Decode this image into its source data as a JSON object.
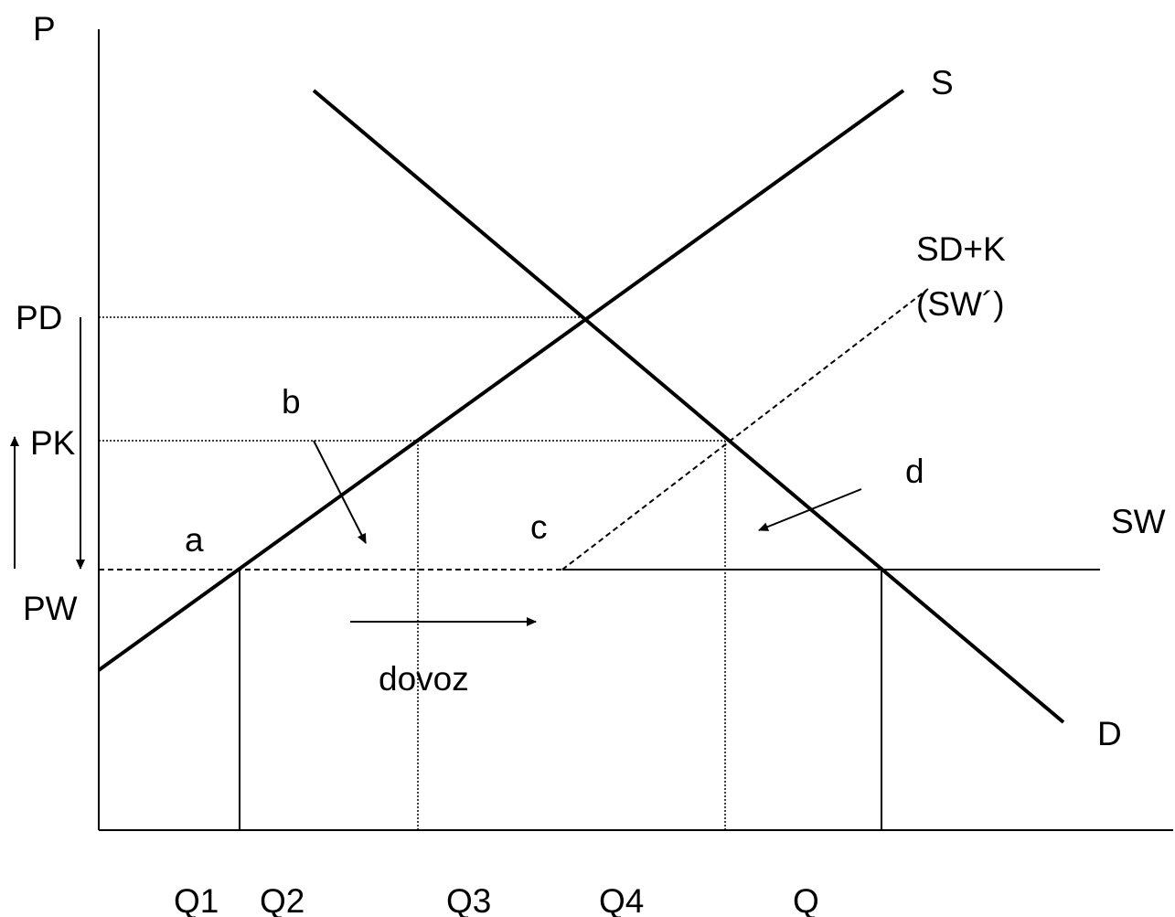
{
  "axes": {
    "y_label": "P",
    "x_ticks": [
      "Q1",
      "Q2",
      "Q3",
      "Q4",
      "Q"
    ],
    "price_labels": [
      "PD",
      "PK",
      "PW"
    ]
  },
  "curves": {
    "supply": "S",
    "demand": "D",
    "world_supply": "SW",
    "shifted_supply_line1": "SD+K",
    "shifted_supply_line2": "(SW´)"
  },
  "areas": {
    "a": "a",
    "b": "b",
    "c": "c",
    "d": "d"
  },
  "annotations": {
    "imports": "dovoz"
  }
}
